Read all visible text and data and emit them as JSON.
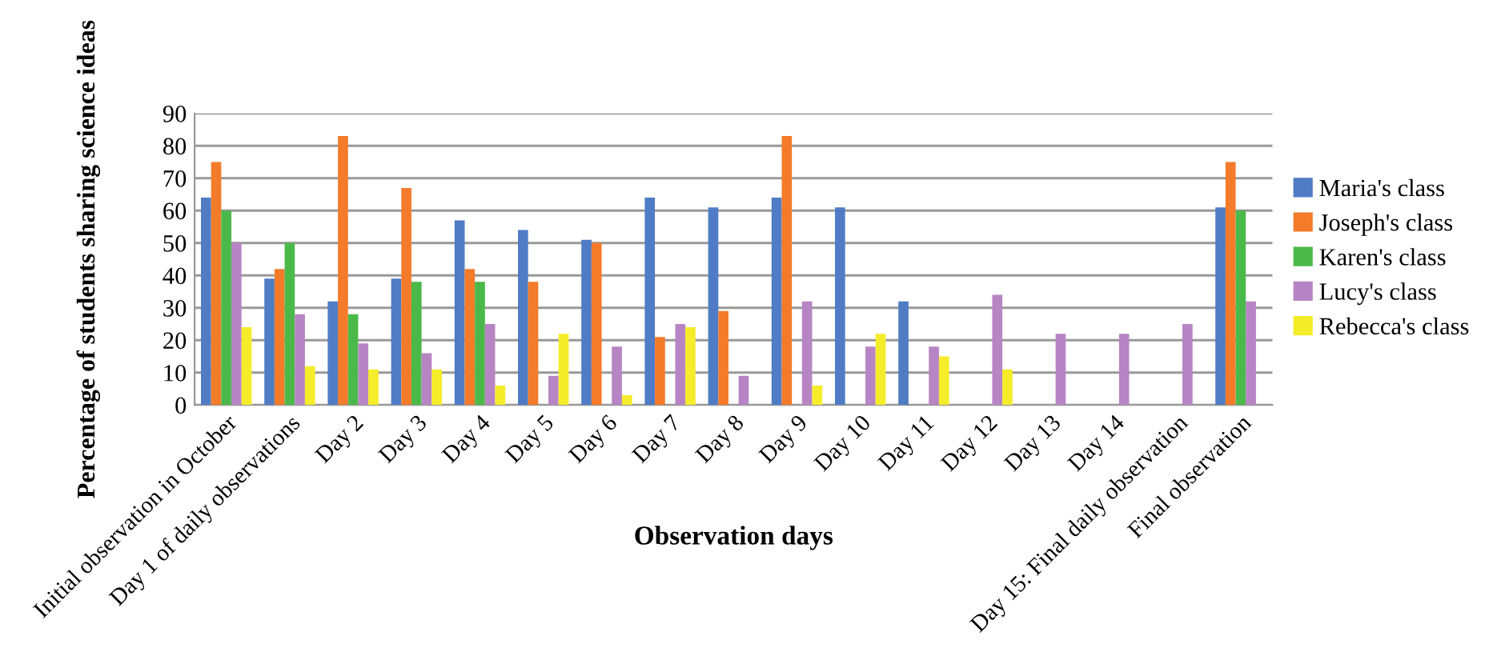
{
  "chart_data": {
    "type": "bar",
    "xlabel": "Observation days",
    "ylabel": "Percentage of students sharing science ideas",
    "categories": [
      "Initial observation in October",
      "Day 1 of daily observations",
      "Day 2",
      "Day 3",
      "Day 4",
      "Day 5",
      "Day 6",
      "Day 7",
      "Day 8",
      "Day 9",
      "Day 10",
      "Day 11",
      "Day 12",
      "Day 13",
      "Day 14",
      "Day 15: Final daily observation",
      "Final observation"
    ],
    "series": [
      {
        "name": "Maria's class",
        "color": "#4f7cc4",
        "values": [
          64,
          39,
          32,
          39,
          57,
          54,
          51,
          64,
          61,
          64,
          61,
          32,
          null,
          null,
          null,
          null,
          61
        ]
      },
      {
        "name": "Joseph's class",
        "color": "#f47b2a",
        "values": [
          75,
          42,
          83,
          67,
          42,
          38,
          50,
          21,
          29,
          83,
          null,
          null,
          null,
          null,
          null,
          null,
          75
        ]
      },
      {
        "name": "Karen's class",
        "color": "#4bb94a",
        "values": [
          60,
          50,
          28,
          38,
          38,
          null,
          null,
          null,
          null,
          null,
          null,
          null,
          null,
          null,
          null,
          null,
          60
        ]
      },
      {
        "name": "Lucy's class",
        "color": "#b885c4",
        "values": [
          50,
          28,
          19,
          16,
          25,
          9,
          18,
          25,
          9,
          32,
          18,
          18,
          34,
          22,
          22,
          25,
          32
        ]
      },
      {
        "name": "Rebecca's class",
        "color": "#f5ec2a",
        "values": [
          24,
          12,
          11,
          11,
          6,
          22,
          3,
          24,
          null,
          6,
          22,
          15,
          11,
          null,
          null,
          null,
          null
        ]
      }
    ],
    "ylim": [
      0,
      90
    ],
    "yticks": [
      0,
      10,
      20,
      30,
      40,
      50,
      60,
      70,
      80,
      90
    ],
    "grid": "y",
    "legend": "right"
  }
}
